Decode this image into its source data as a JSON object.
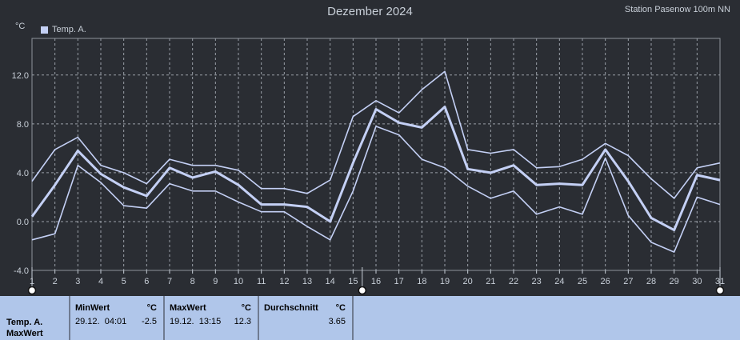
{
  "header": {
    "title": "Dezember 2024",
    "station": "Station Pasenow 100m NN",
    "unit": "°C",
    "legend": "Temp. A."
  },
  "colors": {
    "background": "#2a2d33",
    "line": "#c4d0f5",
    "grid": "#9aa0a8",
    "panel": "#b0c6ea"
  },
  "chart_data": {
    "type": "line",
    "x": [
      1,
      2,
      3,
      4,
      5,
      6,
      7,
      8,
      9,
      10,
      11,
      12,
      13,
      14,
      15,
      16,
      17,
      18,
      19,
      20,
      21,
      22,
      23,
      24,
      25,
      26,
      27,
      28,
      29,
      30,
      31
    ],
    "xlim": [
      1,
      31
    ],
    "ylim": [
      -4,
      15
    ],
    "yticks": [
      -4,
      0,
      4,
      8,
      12
    ],
    "ytick_labels": [
      "-4.0",
      "0.0",
      "4.0",
      "8.0",
      "12.0"
    ],
    "grid": true,
    "legend_position": "top-left",
    "series": [
      {
        "role": "max",
        "values": [
          3.3,
          5.9,
          6.9,
          4.6,
          4.0,
          3.1,
          5.1,
          4.6,
          4.6,
          4.2,
          2.7,
          2.7,
          2.3,
          3.4,
          8.6,
          9.9,
          8.9,
          10.8,
          12.3,
          5.9,
          5.6,
          5.9,
          4.4,
          4.5,
          5.1,
          6.4,
          5.4,
          3.5,
          1.9,
          4.4,
          4.8
        ]
      },
      {
        "role": "avg",
        "values": [
          0.4,
          3.0,
          5.8,
          3.9,
          2.8,
          2.1,
          4.4,
          3.6,
          4.1,
          3.0,
          1.4,
          1.4,
          1.2,
          0.0,
          4.8,
          9.2,
          8.1,
          7.7,
          9.4,
          4.3,
          4.0,
          4.6,
          3.0,
          3.1,
          3.0,
          5.9,
          3.3,
          0.3,
          -0.7,
          3.8,
          3.4
        ]
      },
      {
        "role": "min",
        "values": [
          -1.5,
          -1.0,
          4.6,
          3.2,
          1.3,
          1.1,
          3.1,
          2.5,
          2.5,
          1.6,
          0.8,
          0.8,
          -0.4,
          -1.5,
          2.5,
          7.8,
          7.1,
          5.1,
          4.4,
          2.9,
          1.9,
          2.5,
          0.6,
          1.2,
          0.6,
          5.2,
          0.5,
          -1.7,
          -2.5,
          2.0,
          1.4
        ]
      }
    ]
  },
  "stats": {
    "row_label_1": "Temp. A.",
    "row_label_2": "MaxWert",
    "min": {
      "title": "MinWert",
      "unit": "°C",
      "date": "29.12.",
      "time": "04:01",
      "value": "-2.5"
    },
    "max": {
      "title": "MaxWert",
      "unit": "°C",
      "date": "19.12.",
      "time": "13:15",
      "value": "12.3"
    },
    "avg": {
      "title": "Durchschnitt",
      "unit": "°C",
      "value": "3.65"
    }
  }
}
